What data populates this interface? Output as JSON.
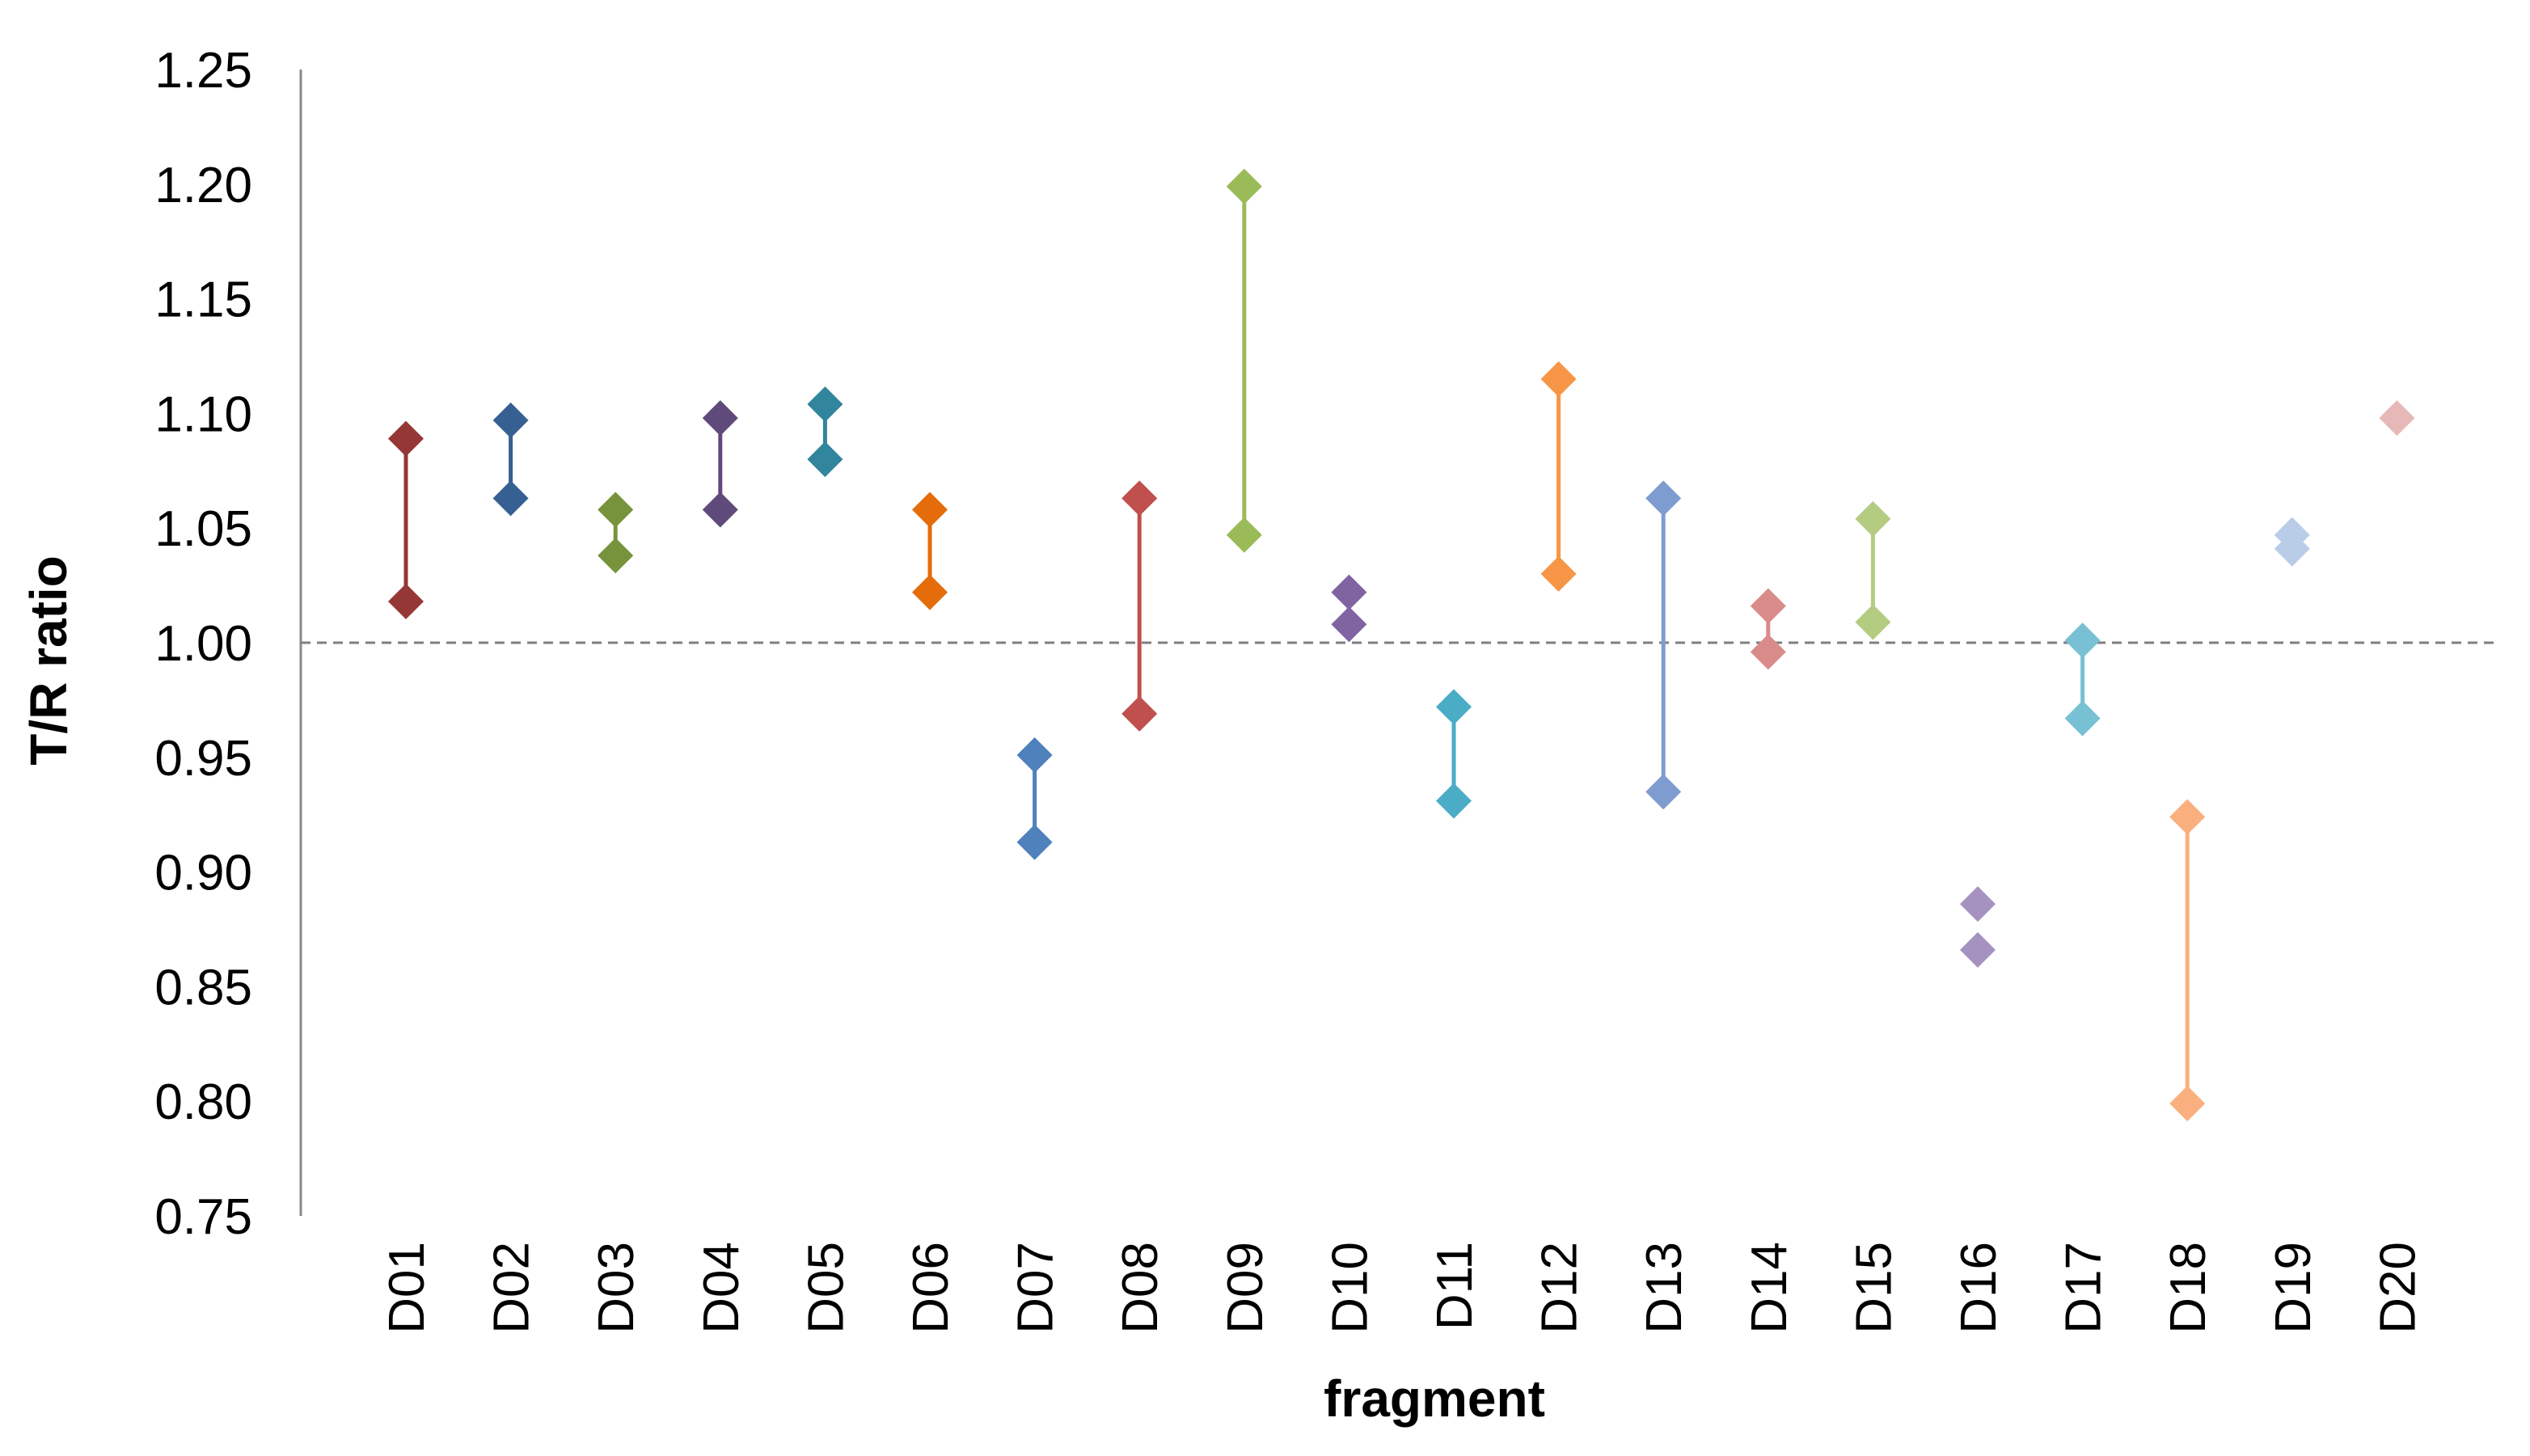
{
  "chart_data": {
    "type": "range-dot",
    "title": "",
    "xlabel": "fragment",
    "ylabel": "T/R ratio",
    "ylim": [
      0.75,
      1.25
    ],
    "yticks": [
      "0.75",
      "0.80",
      "0.85",
      "0.90",
      "0.95",
      "1.00",
      "1.05",
      "1.10",
      "1.15",
      "1.20",
      "1.25"
    ],
    "reference_line": 1.0,
    "grid": false,
    "legend": "none",
    "categories": [
      "D01",
      "D02",
      "D03",
      "D04",
      "D05",
      "D06",
      "D07",
      "D08",
      "D09",
      "D10",
      "D11",
      "D12",
      "D13",
      "D14",
      "D15",
      "D16",
      "D17",
      "D18",
      "D19",
      "D20"
    ],
    "series": [
      {
        "name": "D01",
        "low": 1.018,
        "high": 1.089,
        "color": "#953735",
        "connected": true
      },
      {
        "name": "D02",
        "low": 1.063,
        "high": 1.097,
        "color": "#376092",
        "connected": true
      },
      {
        "name": "D03",
        "low": 1.038,
        "high": 1.058,
        "color": "#77933C",
        "connected": true
      },
      {
        "name": "D04",
        "low": 1.058,
        "high": 1.098,
        "color": "#604A7B",
        "connected": true
      },
      {
        "name": "D05",
        "low": 1.08,
        "high": 1.104,
        "color": "#31859C",
        "connected": true
      },
      {
        "name": "D06",
        "low": 1.022,
        "high": 1.058,
        "color": "#E46C0A",
        "connected": true
      },
      {
        "name": "D07",
        "low": 0.913,
        "high": 0.951,
        "color": "#4F81BD",
        "connected": true
      },
      {
        "name": "D08",
        "low": 0.969,
        "high": 1.063,
        "color": "#C0504D",
        "connected": true
      },
      {
        "name": "D09",
        "low": 1.047,
        "high": 1.199,
        "color": "#9BBB59",
        "connected": true
      },
      {
        "name": "D10",
        "low": 1.008,
        "high": 1.022,
        "color": "#8064A2",
        "connected": true
      },
      {
        "name": "D11",
        "low": 0.931,
        "high": 0.972,
        "color": "#4BACC6",
        "connected": true
      },
      {
        "name": "D12",
        "low": 1.03,
        "high": 1.115,
        "color": "#F79646",
        "connected": true
      },
      {
        "name": "D13",
        "low": 0.935,
        "high": 1.063,
        "color": "#7F9CD0",
        "connected": true
      },
      {
        "name": "D14",
        "low": 0.996,
        "high": 1.016,
        "color": "#D98B8A",
        "connected": true
      },
      {
        "name": "D15",
        "low": 1.009,
        "high": 1.054,
        "color": "#B3CC82",
        "connected": true
      },
      {
        "name": "D16",
        "low": 0.866,
        "high": 0.886,
        "color": "#A692C0",
        "connected": false
      },
      {
        "name": "D17",
        "low": 0.967,
        "high": 1.001,
        "color": "#78C0D4",
        "connected": true
      },
      {
        "name": "D18",
        "low": 0.799,
        "high": 0.924,
        "color": "#FAB07E",
        "connected": true
      },
      {
        "name": "D19",
        "low": 1.041,
        "high": 1.047,
        "color": "#B9CCE8",
        "connected": false
      },
      {
        "name": "D20",
        "low": 1.098,
        "high": 1.098,
        "color": "#E6B9B8",
        "connected": false
      }
    ]
  }
}
